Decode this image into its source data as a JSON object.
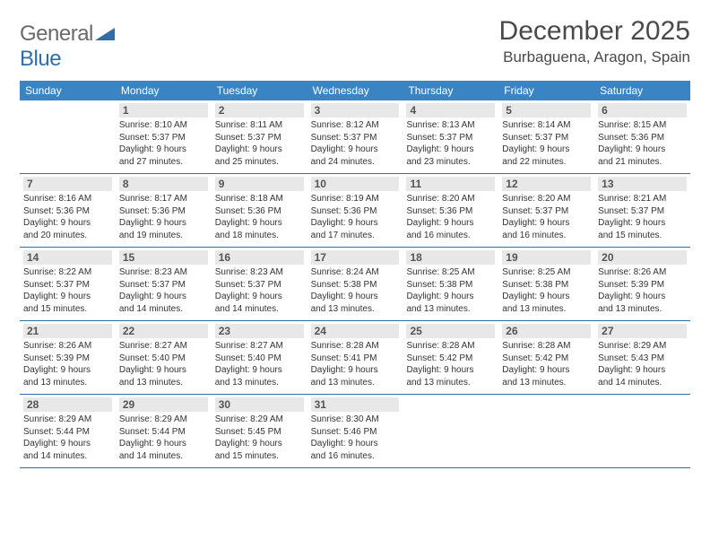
{
  "logo": {
    "text1": "General",
    "text2": "Blue"
  },
  "title": "December 2025",
  "location": "Burbaguena, Aragon, Spain",
  "colors": {
    "header_bg": "#3b84c4",
    "border": "#2f6fa8",
    "daynum_bg": "#e8e8e8",
    "text": "#333333",
    "logo_gray": "#6a6a6a",
    "logo_blue": "#2f6fa8"
  },
  "weekdays": [
    "Sunday",
    "Monday",
    "Tuesday",
    "Wednesday",
    "Thursday",
    "Friday",
    "Saturday"
  ],
  "weeks": [
    [
      null,
      {
        "n": "1",
        "sr": "Sunrise: 8:10 AM",
        "ss": "Sunset: 5:37 PM",
        "d1": "Daylight: 9 hours",
        "d2": "and 27 minutes."
      },
      {
        "n": "2",
        "sr": "Sunrise: 8:11 AM",
        "ss": "Sunset: 5:37 PM",
        "d1": "Daylight: 9 hours",
        "d2": "and 25 minutes."
      },
      {
        "n": "3",
        "sr": "Sunrise: 8:12 AM",
        "ss": "Sunset: 5:37 PM",
        "d1": "Daylight: 9 hours",
        "d2": "and 24 minutes."
      },
      {
        "n": "4",
        "sr": "Sunrise: 8:13 AM",
        "ss": "Sunset: 5:37 PM",
        "d1": "Daylight: 9 hours",
        "d2": "and 23 minutes."
      },
      {
        "n": "5",
        "sr": "Sunrise: 8:14 AM",
        "ss": "Sunset: 5:37 PM",
        "d1": "Daylight: 9 hours",
        "d2": "and 22 minutes."
      },
      {
        "n": "6",
        "sr": "Sunrise: 8:15 AM",
        "ss": "Sunset: 5:36 PM",
        "d1": "Daylight: 9 hours",
        "d2": "and 21 minutes."
      }
    ],
    [
      {
        "n": "7",
        "sr": "Sunrise: 8:16 AM",
        "ss": "Sunset: 5:36 PM",
        "d1": "Daylight: 9 hours",
        "d2": "and 20 minutes."
      },
      {
        "n": "8",
        "sr": "Sunrise: 8:17 AM",
        "ss": "Sunset: 5:36 PM",
        "d1": "Daylight: 9 hours",
        "d2": "and 19 minutes."
      },
      {
        "n": "9",
        "sr": "Sunrise: 8:18 AM",
        "ss": "Sunset: 5:36 PM",
        "d1": "Daylight: 9 hours",
        "d2": "and 18 minutes."
      },
      {
        "n": "10",
        "sr": "Sunrise: 8:19 AM",
        "ss": "Sunset: 5:36 PM",
        "d1": "Daylight: 9 hours",
        "d2": "and 17 minutes."
      },
      {
        "n": "11",
        "sr": "Sunrise: 8:20 AM",
        "ss": "Sunset: 5:36 PM",
        "d1": "Daylight: 9 hours",
        "d2": "and 16 minutes."
      },
      {
        "n": "12",
        "sr": "Sunrise: 8:20 AM",
        "ss": "Sunset: 5:37 PM",
        "d1": "Daylight: 9 hours",
        "d2": "and 16 minutes."
      },
      {
        "n": "13",
        "sr": "Sunrise: 8:21 AM",
        "ss": "Sunset: 5:37 PM",
        "d1": "Daylight: 9 hours",
        "d2": "and 15 minutes."
      }
    ],
    [
      {
        "n": "14",
        "sr": "Sunrise: 8:22 AM",
        "ss": "Sunset: 5:37 PM",
        "d1": "Daylight: 9 hours",
        "d2": "and 15 minutes."
      },
      {
        "n": "15",
        "sr": "Sunrise: 8:23 AM",
        "ss": "Sunset: 5:37 PM",
        "d1": "Daylight: 9 hours",
        "d2": "and 14 minutes."
      },
      {
        "n": "16",
        "sr": "Sunrise: 8:23 AM",
        "ss": "Sunset: 5:37 PM",
        "d1": "Daylight: 9 hours",
        "d2": "and 14 minutes."
      },
      {
        "n": "17",
        "sr": "Sunrise: 8:24 AM",
        "ss": "Sunset: 5:38 PM",
        "d1": "Daylight: 9 hours",
        "d2": "and 13 minutes."
      },
      {
        "n": "18",
        "sr": "Sunrise: 8:25 AM",
        "ss": "Sunset: 5:38 PM",
        "d1": "Daylight: 9 hours",
        "d2": "and 13 minutes."
      },
      {
        "n": "19",
        "sr": "Sunrise: 8:25 AM",
        "ss": "Sunset: 5:38 PM",
        "d1": "Daylight: 9 hours",
        "d2": "and 13 minutes."
      },
      {
        "n": "20",
        "sr": "Sunrise: 8:26 AM",
        "ss": "Sunset: 5:39 PM",
        "d1": "Daylight: 9 hours",
        "d2": "and 13 minutes."
      }
    ],
    [
      {
        "n": "21",
        "sr": "Sunrise: 8:26 AM",
        "ss": "Sunset: 5:39 PM",
        "d1": "Daylight: 9 hours",
        "d2": "and 13 minutes."
      },
      {
        "n": "22",
        "sr": "Sunrise: 8:27 AM",
        "ss": "Sunset: 5:40 PM",
        "d1": "Daylight: 9 hours",
        "d2": "and 13 minutes."
      },
      {
        "n": "23",
        "sr": "Sunrise: 8:27 AM",
        "ss": "Sunset: 5:40 PM",
        "d1": "Daylight: 9 hours",
        "d2": "and 13 minutes."
      },
      {
        "n": "24",
        "sr": "Sunrise: 8:28 AM",
        "ss": "Sunset: 5:41 PM",
        "d1": "Daylight: 9 hours",
        "d2": "and 13 minutes."
      },
      {
        "n": "25",
        "sr": "Sunrise: 8:28 AM",
        "ss": "Sunset: 5:42 PM",
        "d1": "Daylight: 9 hours",
        "d2": "and 13 minutes."
      },
      {
        "n": "26",
        "sr": "Sunrise: 8:28 AM",
        "ss": "Sunset: 5:42 PM",
        "d1": "Daylight: 9 hours",
        "d2": "and 13 minutes."
      },
      {
        "n": "27",
        "sr": "Sunrise: 8:29 AM",
        "ss": "Sunset: 5:43 PM",
        "d1": "Daylight: 9 hours",
        "d2": "and 14 minutes."
      }
    ],
    [
      {
        "n": "28",
        "sr": "Sunrise: 8:29 AM",
        "ss": "Sunset: 5:44 PM",
        "d1": "Daylight: 9 hours",
        "d2": "and 14 minutes."
      },
      {
        "n": "29",
        "sr": "Sunrise: 8:29 AM",
        "ss": "Sunset: 5:44 PM",
        "d1": "Daylight: 9 hours",
        "d2": "and 14 minutes."
      },
      {
        "n": "30",
        "sr": "Sunrise: 8:29 AM",
        "ss": "Sunset: 5:45 PM",
        "d1": "Daylight: 9 hours",
        "d2": "and 15 minutes."
      },
      {
        "n": "31",
        "sr": "Sunrise: 8:30 AM",
        "ss": "Sunset: 5:46 PM",
        "d1": "Daylight: 9 hours",
        "d2": "and 16 minutes."
      },
      null,
      null,
      null
    ]
  ]
}
